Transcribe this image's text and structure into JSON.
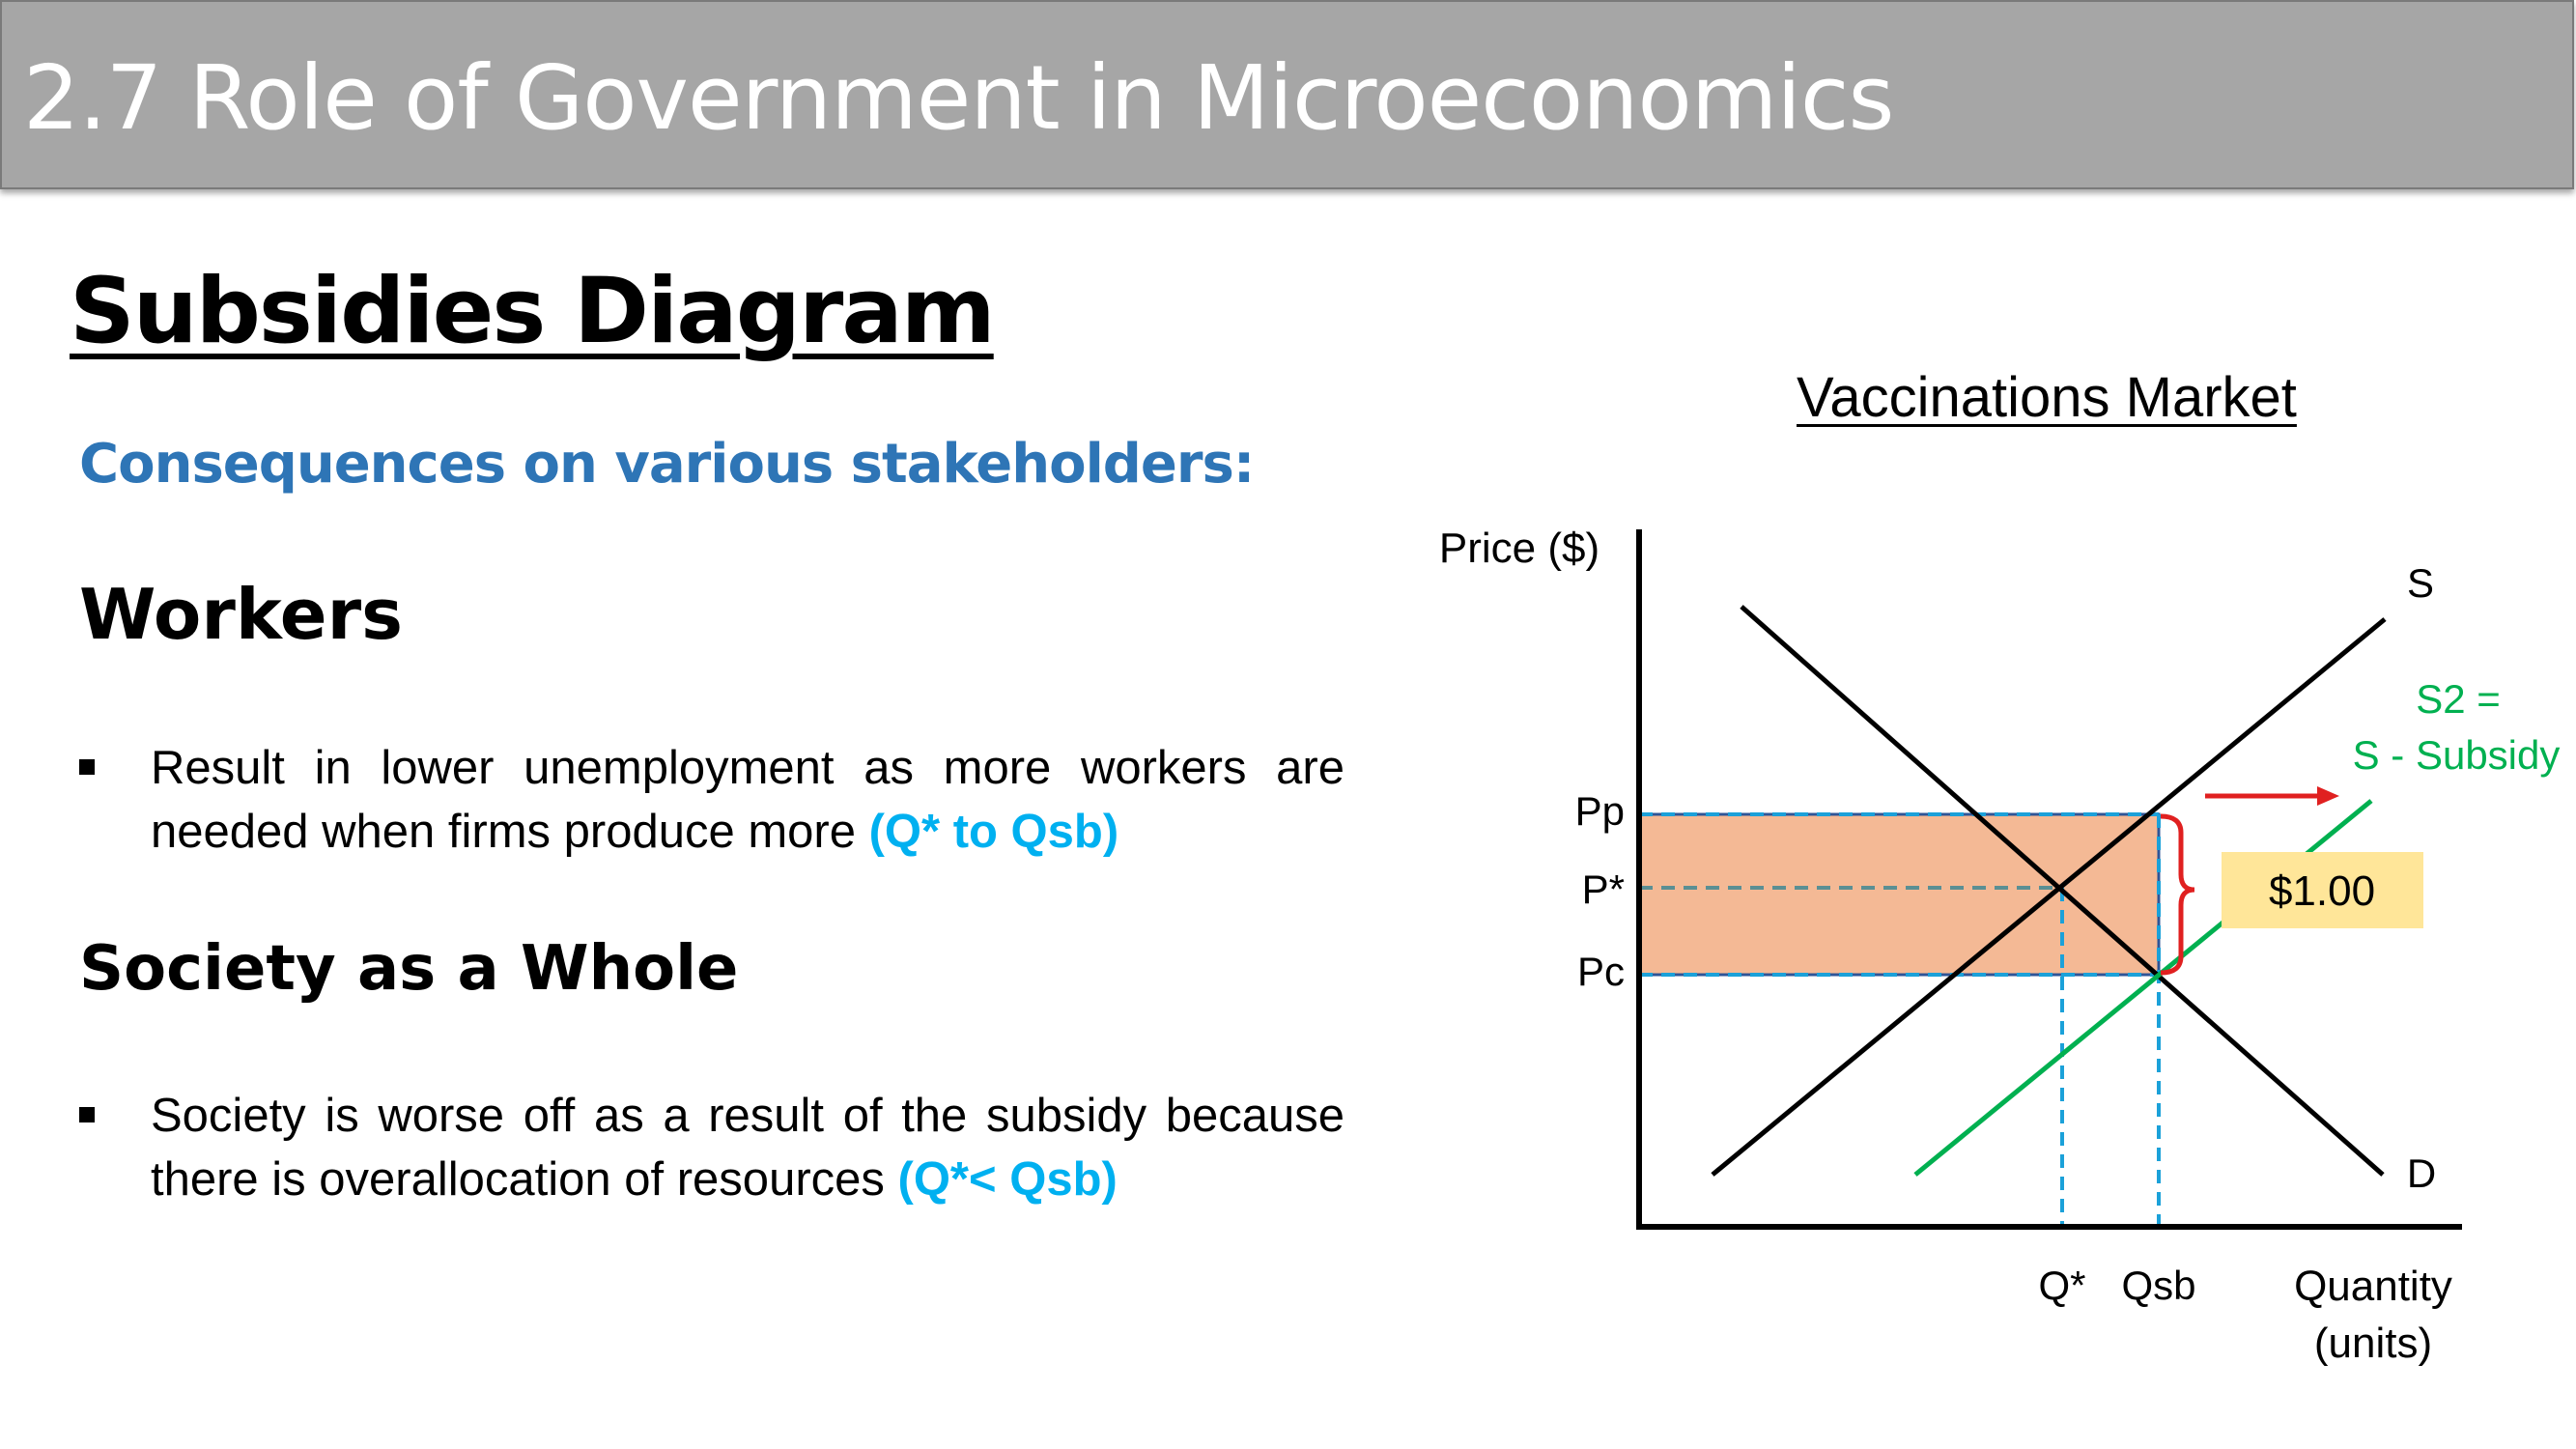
{
  "slide": {
    "title": "2.7 Role of Government in Microeconomics",
    "heading": "Subsidies Diagram",
    "subheading": "Consequences on various stakeholders:"
  },
  "sections": [
    {
      "title": "Workers",
      "bullet_text": "Result in lower unemployment as more workers are needed when firms produce more ",
      "bullet_highlight": "(Q* to Qsb)"
    },
    {
      "title": "Society as a Whole",
      "bullet_text": "Society is worse off as a result of the subsidy because there is overallocation of resources ",
      "bullet_highlight": "(Q*< Qsb)"
    }
  ],
  "diagram": {
    "title": "Vaccinations Market",
    "y_axis_label": "Price ($)",
    "x_axis_label_line1": "Quantity",
    "x_axis_label_line2": "(units)",
    "supply_label": "S",
    "supply2_label_line1": "S2 =",
    "supply2_label_line2": "S - Subsidy",
    "demand_label": "D",
    "price_labels": {
      "pp": "Pp",
      "pstar": "P*",
      "pc": "Pc"
    },
    "quantity_labels": {
      "qstar": "Q*",
      "qsb": "Qsb"
    },
    "subsidy_box": "$1.00",
    "colors": {
      "supply2": "#00b050",
      "shaded_area": "#f4b995",
      "dashed_lines": "#1ba1d9",
      "arrow": "#e02020",
      "subsidy_box_fill": "#ffe699",
      "subheading": "#2e75b6",
      "highlight": "#00b0f0"
    }
  }
}
